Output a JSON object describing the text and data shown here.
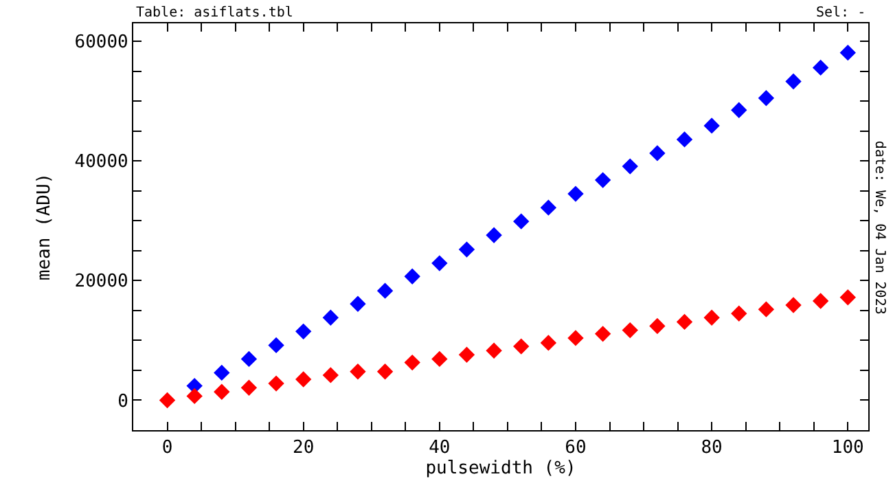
{
  "chart_data": {
    "type": "scatter",
    "xlabel": "pulsewidth (%)",
    "ylabel": "mean (ADU)",
    "annotations": [
      "Table: asiflats.tbl",
      "Sel: -",
      "date: We, 04 Jan 2023"
    ],
    "x": [
      0,
      4,
      8,
      12,
      16,
      20,
      24,
      28,
      32,
      36,
      40,
      44,
      48,
      52,
      56,
      60,
      64,
      68,
      72,
      76,
      80,
      84,
      88,
      92,
      96,
      100
    ],
    "series": [
      {
        "color": "#0000ff",
        "values": [
          null,
          2400,
          4600,
          6900,
          9200,
          11500,
          13800,
          16100,
          18300,
          20700,
          22900,
          25200,
          27600,
          29900,
          32200,
          34500,
          36800,
          39100,
          41300,
          43600,
          45900,
          48500,
          50500,
          53300,
          55600,
          58100
        ]
      },
      {
        "color": "#ff0000",
        "values": [
          0,
          700,
          1400,
          2100,
          2800,
          3500,
          4200,
          4800,
          4800,
          6300,
          6900,
          7600,
          8300,
          9000,
          9600,
          10400,
          11100,
          11700,
          12400,
          13100,
          13800,
          14500,
          15200,
          15900,
          16600,
          17200
        ]
      }
    ],
    "marker": "diamond",
    "xlim": [
      -5,
      103
    ],
    "ylim": [
      -5000,
      63000
    ],
    "xticks": [
      0,
      {
        "value": 5,
        "label": null
      },
      {
        "value": 10,
        "label": null
      },
      {
        "value": 15,
        "label": null
      },
      20,
      {
        "value": 25,
        "label": null
      },
      {
        "value": 30,
        "label": null
      },
      {
        "value": 35,
        "label": null
      },
      40,
      {
        "value": 45,
        "label": null
      },
      {
        "value": 50,
        "label": null
      },
      {
        "value": 55,
        "label": null
      },
      60,
      {
        "value": 65,
        "label": null
      },
      {
        "value": 70,
        "label": null
      },
      {
        "value": 75,
        "label": null
      },
      80,
      {
        "value": 85,
        "label": null
      },
      {
        "value": 90,
        "label": null
      },
      {
        "value": 95,
        "label": null
      },
      100
    ],
    "yticks": [
      0,
      {
        "value": 5000,
        "label": null
      },
      {
        "value": 10000,
        "label": null
      },
      {
        "value": 15000,
        "label": null
      },
      20000,
      {
        "value": 25000,
        "label": null
      },
      {
        "value": 30000,
        "label": null
      },
      {
        "value": 35000,
        "label": null
      },
      40000,
      {
        "value": 45000,
        "label": null
      },
      {
        "value": 50000,
        "label": null
      },
      {
        "value": 55000,
        "label": null
      },
      60000
    ]
  }
}
